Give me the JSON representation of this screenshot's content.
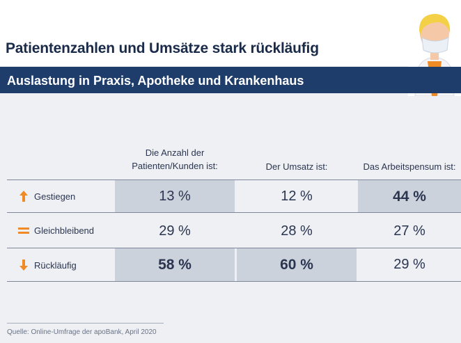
{
  "title": "Patientenzahlen und Umsätze stark rückläufig",
  "subtitle": "Auslastung in Praxis, Apotheke und Krankenhaus",
  "colors": {
    "accent": "#f08a24",
    "header_bg": "#1e3d6b",
    "title_text": "#1a2b4a",
    "shade": "#ccd2dc"
  },
  "chart_data": {
    "type": "table",
    "columns": [
      "Die Anzahl der Patienten/Kunden ist:",
      "Der Umsatz ist:",
      "Das Arbeitspensum ist:"
    ],
    "rows": [
      {
        "label": "Gestiegen",
        "icon": "arrow-up-icon",
        "values": [
          "13 %",
          "12 %",
          "44 %"
        ],
        "bold": [
          false,
          false,
          true
        ]
      },
      {
        "label": "Gleichbleibend",
        "icon": "equals-icon",
        "values": [
          "29 %",
          "28 %",
          "27 %"
        ],
        "bold": [
          false,
          false,
          false
        ]
      },
      {
        "label": "Rückläufig",
        "icon": "arrow-down-icon",
        "values": [
          "58 %",
          "60 %",
          "29 %"
        ],
        "bold": [
          true,
          true,
          false
        ]
      }
    ]
  },
  "source": "Quelle: Online-Umfrage der apoBank, April 2020"
}
